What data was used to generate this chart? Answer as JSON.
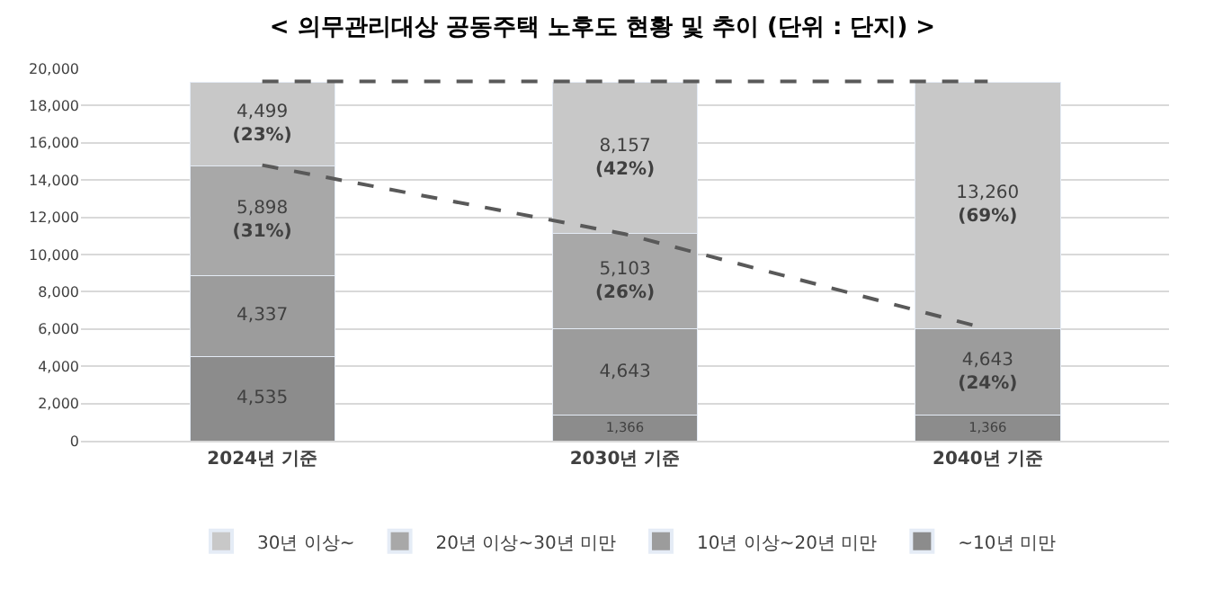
{
  "chart_data": {
    "type": "bar",
    "stacked": true,
    "title": "< 의무관리대상 공동주택 노후도 현황 및 추이 (단위 : 단지) >",
    "categories": [
      "2024년 기준",
      "2030년 기준",
      "2040년 기준"
    ],
    "ylim": [
      0,
      20000
    ],
    "yticks": [
      {
        "value": 0,
        "label": "0"
      },
      {
        "value": 2000,
        "label": "2,000"
      },
      {
        "value": 4000,
        "label": "4,000"
      },
      {
        "value": 6000,
        "label": "6,000"
      },
      {
        "value": 8000,
        "label": "8,000"
      },
      {
        "value": 10000,
        "label": "10,000"
      },
      {
        "value": 12000,
        "label": "12,000"
      },
      {
        "value": 14000,
        "label": "14,000"
      },
      {
        "value": 16000,
        "label": "16,000"
      },
      {
        "value": 18000,
        "label": "18,000"
      },
      {
        "value": 20000,
        "label": "20,000"
      }
    ],
    "grid": "y",
    "legend": "bottom",
    "series": [
      {
        "name": "~10년 미만",
        "color": "#8c8c8c",
        "values": [
          4535,
          1366,
          1366
        ],
        "value_labels": [
          "4,535",
          "1,366",
          "1,366"
        ]
      },
      {
        "name": "10년 이상~20년 미만",
        "color": "#9c9c9c",
        "values": [
          4337,
          4643,
          4643
        ],
        "value_labels": [
          "4,337",
          "4,643",
          "4,643\n(24%)"
        ]
      },
      {
        "name": "20년 이상~30년 미만",
        "color": "#a8a8a8",
        "values": [
          5898,
          5103,
          null
        ],
        "value_labels": [
          "5,898\n(31%)",
          "5,103\n(26%)",
          null
        ]
      },
      {
        "name": "30년 이상~",
        "color": "#c8c8c8",
        "values": [
          4499,
          8157,
          13260
        ],
        "value_labels": [
          "4,499\n(23%)",
          "8,157\n(42%)",
          "13,260\n(69%)"
        ]
      },
      {
        "type": "line",
        "color": "#595959",
        "line_style": "dashed",
        "values": [
          19300,
          19300,
          19300
        ]
      },
      {
        "type": "line",
        "color": "#595959",
        "line_style": "dashed",
        "values": [
          14800,
          11100,
          6000
        ]
      }
    ]
  }
}
